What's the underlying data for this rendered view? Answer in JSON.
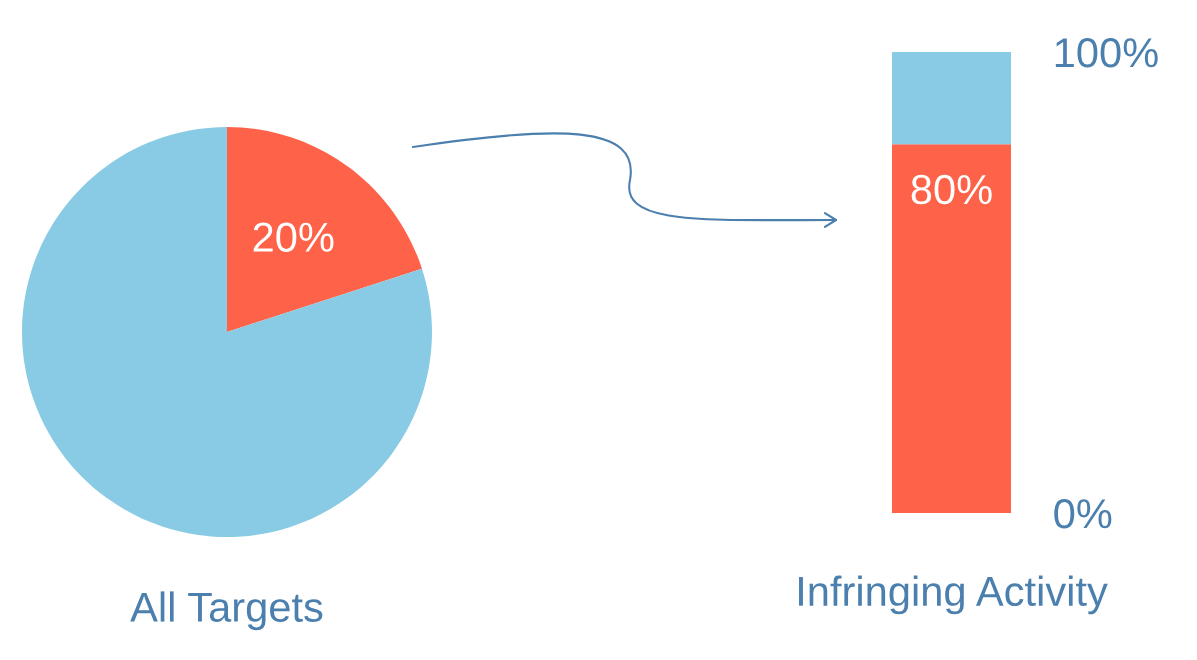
{
  "chart_data": [
    {
      "type": "pie",
      "title": "All Targets",
      "categories": [
        null,
        null
      ],
      "values": [
        20,
        80
      ],
      "colors": [
        "#fe6349",
        "#89cbe4"
      ],
      "value_labels": [
        "20%",
        null
      ]
    },
    {
      "type": "bar",
      "xlabel": "Infringing Activity",
      "stacked": true,
      "categories": [
        null
      ],
      "ylim": [
        0,
        100
      ],
      "yticks": [
        {
          "value": 0,
          "label": "0%"
        },
        {
          "value": 100,
          "label": "100%"
        }
      ],
      "tick_labels": "y",
      "series": [
        {
          "color": "#fe6349",
          "values": [
            80
          ],
          "value_labels": [
            "80%"
          ]
        },
        {
          "color": "#89cbe4",
          "values": [
            20
          ]
        }
      ]
    }
  ]
}
